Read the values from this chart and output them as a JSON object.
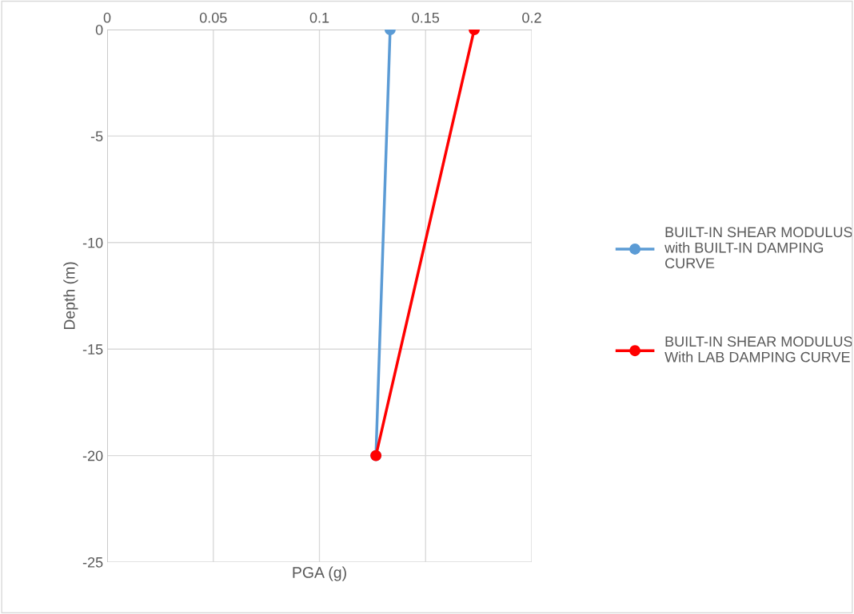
{
  "chart_data": {
    "type": "line",
    "xlabel": "PGA (g)",
    "ylabel": "Depth (m)",
    "xlim": [
      0,
      0.2
    ],
    "xticks": [
      0,
      0.05,
      0.1,
      0.15,
      0.2
    ],
    "ylim": [
      -25,
      0
    ],
    "yticks": [
      -25,
      -20,
      -15,
      -10,
      -5,
      0
    ],
    "grid": true,
    "legend": "right",
    "marker": "circle",
    "line_style": "solid",
    "series": [
      {
        "name": "BUILT-IN SHEAR MODULUS with BUILT-IN DAMPING CURVE",
        "color": "#5b9bd5",
        "x": [
          0.1333,
          0.1266
        ],
        "values": [
          0,
          -20
        ]
      },
      {
        "name": "BUILT-IN SHEAR MODULUS With LAB DAMPING CURVE",
        "color": "#ff0000",
        "x": [
          0.1729,
          0.1266
        ],
        "values": [
          0,
          -20
        ]
      }
    ]
  }
}
